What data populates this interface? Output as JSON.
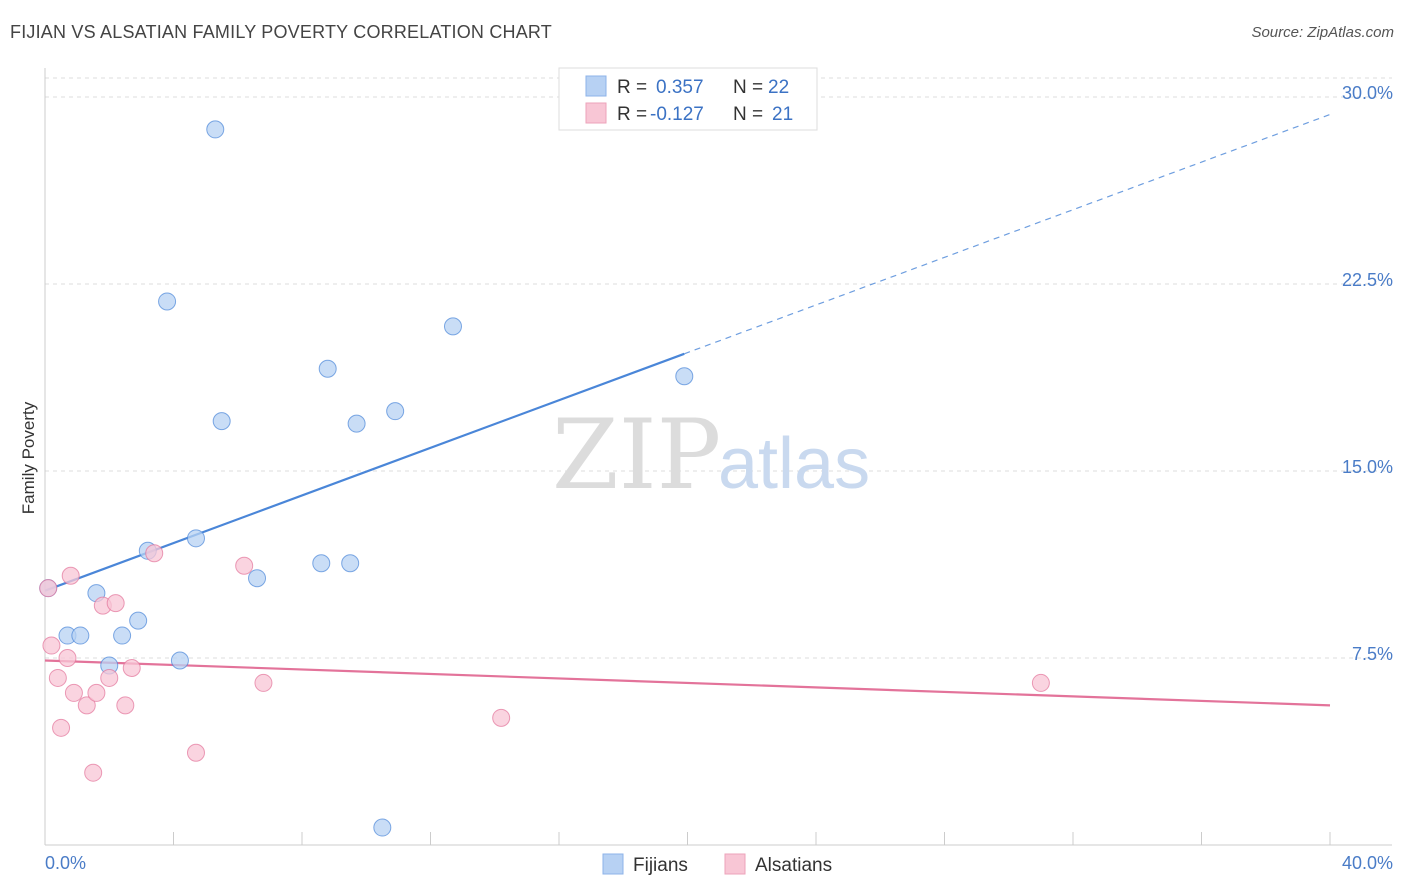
{
  "header": {
    "title": "FIJIAN VS ALSATIAN FAMILY POVERTY CORRELATION CHART",
    "source": "Source: ZipAtlas.com"
  },
  "watermark": {
    "zip": "ZIP",
    "atlas": "atlas"
  },
  "legend": {
    "rows": [
      {
        "r_label": "R =",
        "r_value": "0.357",
        "n_label": "N =",
        "n_value": "22",
        "color": "#b7d1f3"
      },
      {
        "r_label": "R =",
        "r_value": "-0.127",
        "n_label": "N =",
        "n_value": "21",
        "color": "#f8c6d5"
      }
    ]
  },
  "bottom_legend": [
    {
      "label": "Fijians",
      "color": "#b7d1f3"
    },
    {
      "label": "Alsatians",
      "color": "#f8c6d5"
    }
  ],
  "chart_data": {
    "type": "scatter",
    "title": "FIJIAN VS ALSATIAN FAMILY POVERTY CORRELATION CHART",
    "xlabel": "",
    "ylabel": "Family Poverty",
    "xlim": [
      0,
      40
    ],
    "ylim": [
      0,
      30
    ],
    "x_tick_labels": [
      "0.0%",
      "40.0%"
    ],
    "y_ticks": [
      7.5,
      15.0,
      22.5,
      30.0
    ],
    "y_tick_labels": [
      "7.5%",
      "15.0%",
      "22.5%",
      "30.0%"
    ],
    "grid": "horizontal dashed",
    "series": [
      {
        "name": "Fijians",
        "color": "#4a86d8",
        "fill": "#b7d1f3",
        "points": [
          [
            0.1,
            10.3
          ],
          [
            0.7,
            8.4
          ],
          [
            1.1,
            8.4
          ],
          [
            1.6,
            10.1
          ],
          [
            2.0,
            7.2
          ],
          [
            2.4,
            8.4
          ],
          [
            2.9,
            9.0
          ],
          [
            3.2,
            11.8
          ],
          [
            3.8,
            21.8
          ],
          [
            4.2,
            7.4
          ],
          [
            4.7,
            12.3
          ],
          [
            5.3,
            28.7
          ],
          [
            5.5,
            17.0
          ],
          [
            6.6,
            10.7
          ],
          [
            8.6,
            11.3
          ],
          [
            8.8,
            19.1
          ],
          [
            9.5,
            11.3
          ],
          [
            9.7,
            16.9
          ],
          [
            10.9,
            17.4
          ],
          [
            10.5,
            0.7
          ],
          [
            12.7,
            20.8
          ],
          [
            19.9,
            18.8
          ]
        ],
        "trend": {
          "x0": 0,
          "y0": 10.2,
          "x1": 19.9,
          "y1": 19.7,
          "dashed_to_x": 40,
          "dashed_to_y": 29.3
        }
      },
      {
        "name": "Alsatians",
        "color": "#e3739a",
        "fill": "#f8c6d5",
        "points": [
          [
            0.1,
            10.3
          ],
          [
            0.2,
            8.0
          ],
          [
            0.4,
            6.7
          ],
          [
            0.5,
            4.7
          ],
          [
            0.7,
            7.5
          ],
          [
            0.8,
            10.8
          ],
          [
            0.9,
            6.1
          ],
          [
            1.3,
            5.6
          ],
          [
            1.5,
            2.9
          ],
          [
            1.6,
            6.1
          ],
          [
            1.8,
            9.6
          ],
          [
            2.0,
            6.7
          ],
          [
            2.2,
            9.7
          ],
          [
            2.5,
            5.6
          ],
          [
            2.7,
            7.1
          ],
          [
            3.4,
            11.7
          ],
          [
            4.7,
            3.7
          ],
          [
            6.2,
            11.2
          ],
          [
            6.8,
            6.5
          ],
          [
            14.2,
            5.1
          ],
          [
            31.0,
            6.5
          ]
        ],
        "trend": {
          "x0": 0,
          "y0": 7.4,
          "x1": 40,
          "y1": 5.6
        }
      }
    ]
  }
}
